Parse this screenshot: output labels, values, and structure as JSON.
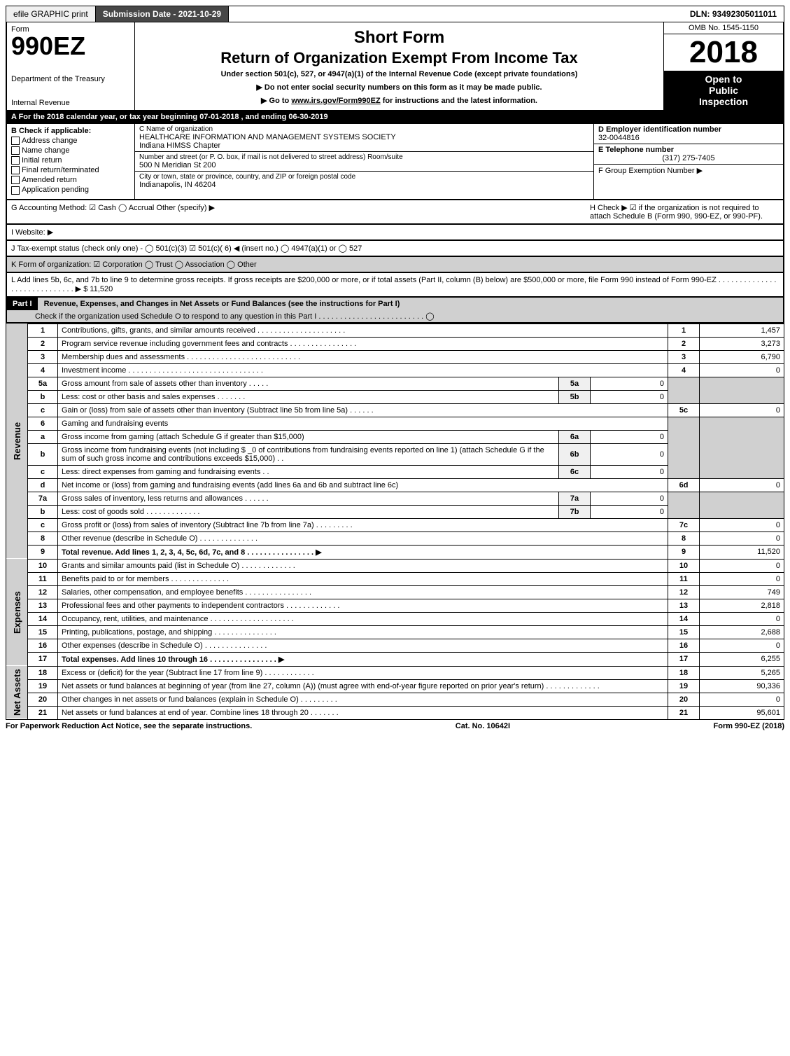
{
  "topbar": {
    "print": "efile GRAPHIC print",
    "submission": "Submission Date - 2021-10-29",
    "dln": "DLN: 93492305011011"
  },
  "header": {
    "form_label": "Form",
    "form_number": "990EZ",
    "dept1": "Department of the Treasury",
    "dept2": "Internal Revenue",
    "title1": "Short Form",
    "title2": "Return of Organization Exempt From Income Tax",
    "subtitle": "Under section 501(c), 527, or 4947(a)(1) of the Internal Revenue Code (except private foundations)",
    "arrow1": "▶ Do not enter social security numbers on this form as it may be made public.",
    "arrow2_pre": "▶ Go to ",
    "arrow2_link": "www.irs.gov/Form990EZ",
    "arrow2_post": " for instructions and the latest information.",
    "omb": "OMB No. 1545-1150",
    "year": "2018",
    "inspection1": "Open to",
    "inspection2": "Public",
    "inspection3": "Inspection"
  },
  "row_a": "A For the 2018 calendar year, or tax year beginning 07-01-2018          , and ending 06-30-2019",
  "col_b": {
    "header": "B  Check if applicable:",
    "items": [
      "Address change",
      "Name change",
      "Initial return",
      "Final return/terminated",
      "Amended return",
      "Application pending"
    ]
  },
  "col_c": {
    "name_label": "C Name of organization",
    "name": "HEALTHCARE INFORMATION AND MANAGEMENT SYSTEMS SOCIETY",
    "name2": "Indiana HIMSS Chapter",
    "addr_label": "Number and street (or P. O. box, if mail is not delivered to street address)     Room/suite",
    "addr": "500 N Meridian St 200",
    "city_label": "City or town, state or province, country, and ZIP or foreign postal code",
    "city": "Indianapolis, IN  46204"
  },
  "col_de": {
    "d_label": "D Employer identification number",
    "d_val": "32-0044816",
    "e_label": "E Telephone number",
    "e_val": "(317) 275-7405",
    "f_label": "F Group Exemption Number  ▶"
  },
  "meta": {
    "g": "G Accounting Method:   ☑ Cash  ◯ Accrual   Other (specify) ▶",
    "h": "H  Check ▶ ☑ if the organization is not required to attach Schedule B (Form 990, 990-EZ, or 990-PF).",
    "i": "I Website: ▶",
    "j": "J Tax-exempt status (check only one) - ◯ 501(c)(3)  ☑ 501(c)( 6) ◀ (insert no.)  ◯ 4947(a)(1) or  ◯ 527",
    "k": "K Form of organization:  ☑ Corporation  ◯ Trust  ◯ Association  ◯ Other",
    "l": "L Add lines 5b, 6c, and 7b to line 9 to determine gross receipts. If gross receipts are $200,000 or more, or if total assets (Part II, column (B) below) are $500,000 or more, file Form 990 instead of Form 990-EZ  . . . . . . . . . . . . . . . . . . . . . . . . . . . . .  ▶ $ 11,520"
  },
  "part1": {
    "label": "Part I",
    "title": "Revenue, Expenses, and Changes in Net Assets or Fund Balances (see the instructions for Part I)",
    "check_line": "Check if the organization used Schedule O to respond to any question in this Part I . . . . . . . . . . . . . . . . . . . . . . . . . ◯"
  },
  "sections": {
    "revenue": "Revenue",
    "expenses": "Expenses",
    "netassets": "Net Assets"
  },
  "lines": {
    "l1": {
      "n": "1",
      "d": "Contributions, gifts, grants, and similar amounts received  . . . . . . . . . . . . . . . . . . . . .",
      "box": "1",
      "amt": "1,457"
    },
    "l2": {
      "n": "2",
      "d": "Program service revenue including government fees and contracts  . . . . . . . . . . . . . . . .",
      "box": "2",
      "amt": "3,273"
    },
    "l3": {
      "n": "3",
      "d": "Membership dues and assessments  . . . . . . . . . . . . . . . . . . . . . . . . . . .",
      "box": "3",
      "amt": "6,790"
    },
    "l4": {
      "n": "4",
      "d": "Investment income  . . . . . . . . . . . . . . . . . . . . . . . . . . . . . . . .",
      "box": "4",
      "amt": "0"
    },
    "l5a": {
      "n": "5a",
      "d": "Gross amount from sale of assets other than inventory  . . . . .",
      "sub": "5a",
      "subv": "0"
    },
    "l5b": {
      "n": "b",
      "d": "Less: cost or other basis and sales expenses  . . . . . . .",
      "sub": "5b",
      "subv": "0"
    },
    "l5c": {
      "n": "c",
      "d": "Gain or (loss) from sale of assets other than inventory (Subtract line 5b from line 5a)  . . . . . .",
      "box": "5c",
      "amt": "0"
    },
    "l6": {
      "n": "6",
      "d": "Gaming and fundraising events"
    },
    "l6a": {
      "n": "a",
      "d": "Gross income from gaming (attach Schedule G if greater than $15,000)",
      "sub": "6a",
      "subv": "0"
    },
    "l6b": {
      "n": "b",
      "d": "Gross income from fundraising events (not including $ _0            of contributions from fundraising events reported on line 1) (attach Schedule G if the sum of such gross income and contributions exceeds $15,000)   . .",
      "sub": "6b",
      "subv": "0"
    },
    "l6c": {
      "n": "c",
      "d": "Less: direct expenses from gaming and fundraising events          . .",
      "sub": "6c",
      "subv": "0"
    },
    "l6d": {
      "n": "d",
      "d": "Net income or (loss) from gaming and fundraising events (add lines 6a and 6b and subtract line 6c)",
      "box": "6d",
      "amt": "0"
    },
    "l7a": {
      "n": "7a",
      "d": "Gross sales of inventory, less returns and allowances  . . . . . .",
      "sub": "7a",
      "subv": "0"
    },
    "l7b": {
      "n": "b",
      "d": "Less: cost of goods sold          . . . . . . . . . . . . .",
      "sub": "7b",
      "subv": "0"
    },
    "l7c": {
      "n": "c",
      "d": "Gross profit or (loss) from sales of inventory (Subtract line 7b from line 7a)  . . . . . . . . .",
      "box": "7c",
      "amt": "0"
    },
    "l8": {
      "n": "8",
      "d": "Other revenue (describe in Schedule O)                            . . . . . . . . . . . . . .",
      "box": "8",
      "amt": "0"
    },
    "l9": {
      "n": "9",
      "d": "Total revenue. Add lines 1, 2, 3, 4, 5c, 6d, 7c, and 8   . . . . . . . . . . . . . . . .  ▶",
      "box": "9",
      "amt": "11,520"
    },
    "l10": {
      "n": "10",
      "d": "Grants and similar amounts paid (list in Schedule O)           . . . . . . . . . . . . .",
      "box": "10",
      "amt": "0"
    },
    "l11": {
      "n": "11",
      "d": "Benefits paid to or for members                              . . . . . . . . . . . . . .",
      "box": "11",
      "amt": "0"
    },
    "l12": {
      "n": "12",
      "d": "Salaries, other compensation, and employee benefits . . . . . . . . . . . . . . . .",
      "box": "12",
      "amt": "749"
    },
    "l13": {
      "n": "13",
      "d": "Professional fees and other payments to independent contractors . . . . . . . . . . . . .",
      "box": "13",
      "amt": "2,818"
    },
    "l14": {
      "n": "14",
      "d": "Occupancy, rent, utilities, and maintenance . . . . . . . . . . . . . . . . . . . .",
      "box": "14",
      "amt": "0"
    },
    "l15": {
      "n": "15",
      "d": "Printing, publications, postage, and shipping            . . . . . . . . . . . . . . .",
      "box": "15",
      "amt": "2,688"
    },
    "l16": {
      "n": "16",
      "d": "Other expenses (describe in Schedule O)                . . . . . . . . . . . . . . .",
      "box": "16",
      "amt": "0"
    },
    "l17": {
      "n": "17",
      "d": "Total expenses. Add lines 10 through 16          . . . . . . . . . . . . . . . .  ▶",
      "box": "17",
      "amt": "6,255"
    },
    "l18": {
      "n": "18",
      "d": "Excess or (deficit) for the year (Subtract line 17 from line 9)        . . . . . . . . . . . .",
      "box": "18",
      "amt": "5,265"
    },
    "l19": {
      "n": "19",
      "d": "Net assets or fund balances at beginning of year (from line 27, column (A)) (must agree with end-of-year figure reported on prior year's return)              . . . . . . . . . . . . .",
      "box": "19",
      "amt": "90,336"
    },
    "l20": {
      "n": "20",
      "d": "Other changes in net assets or fund balances (explain in Schedule O)      . . . . . . . . .",
      "box": "20",
      "amt": "0"
    },
    "l21": {
      "n": "21",
      "d": "Net assets or fund balances at end of year. Combine lines 18 through 20        . . . . . . .",
      "box": "21",
      "amt": "95,601"
    }
  },
  "footer": {
    "left": "For Paperwork Reduction Act Notice, see the separate instructions.",
    "mid": "Cat. No. 10642I",
    "right": "Form 990-EZ (2018)"
  }
}
